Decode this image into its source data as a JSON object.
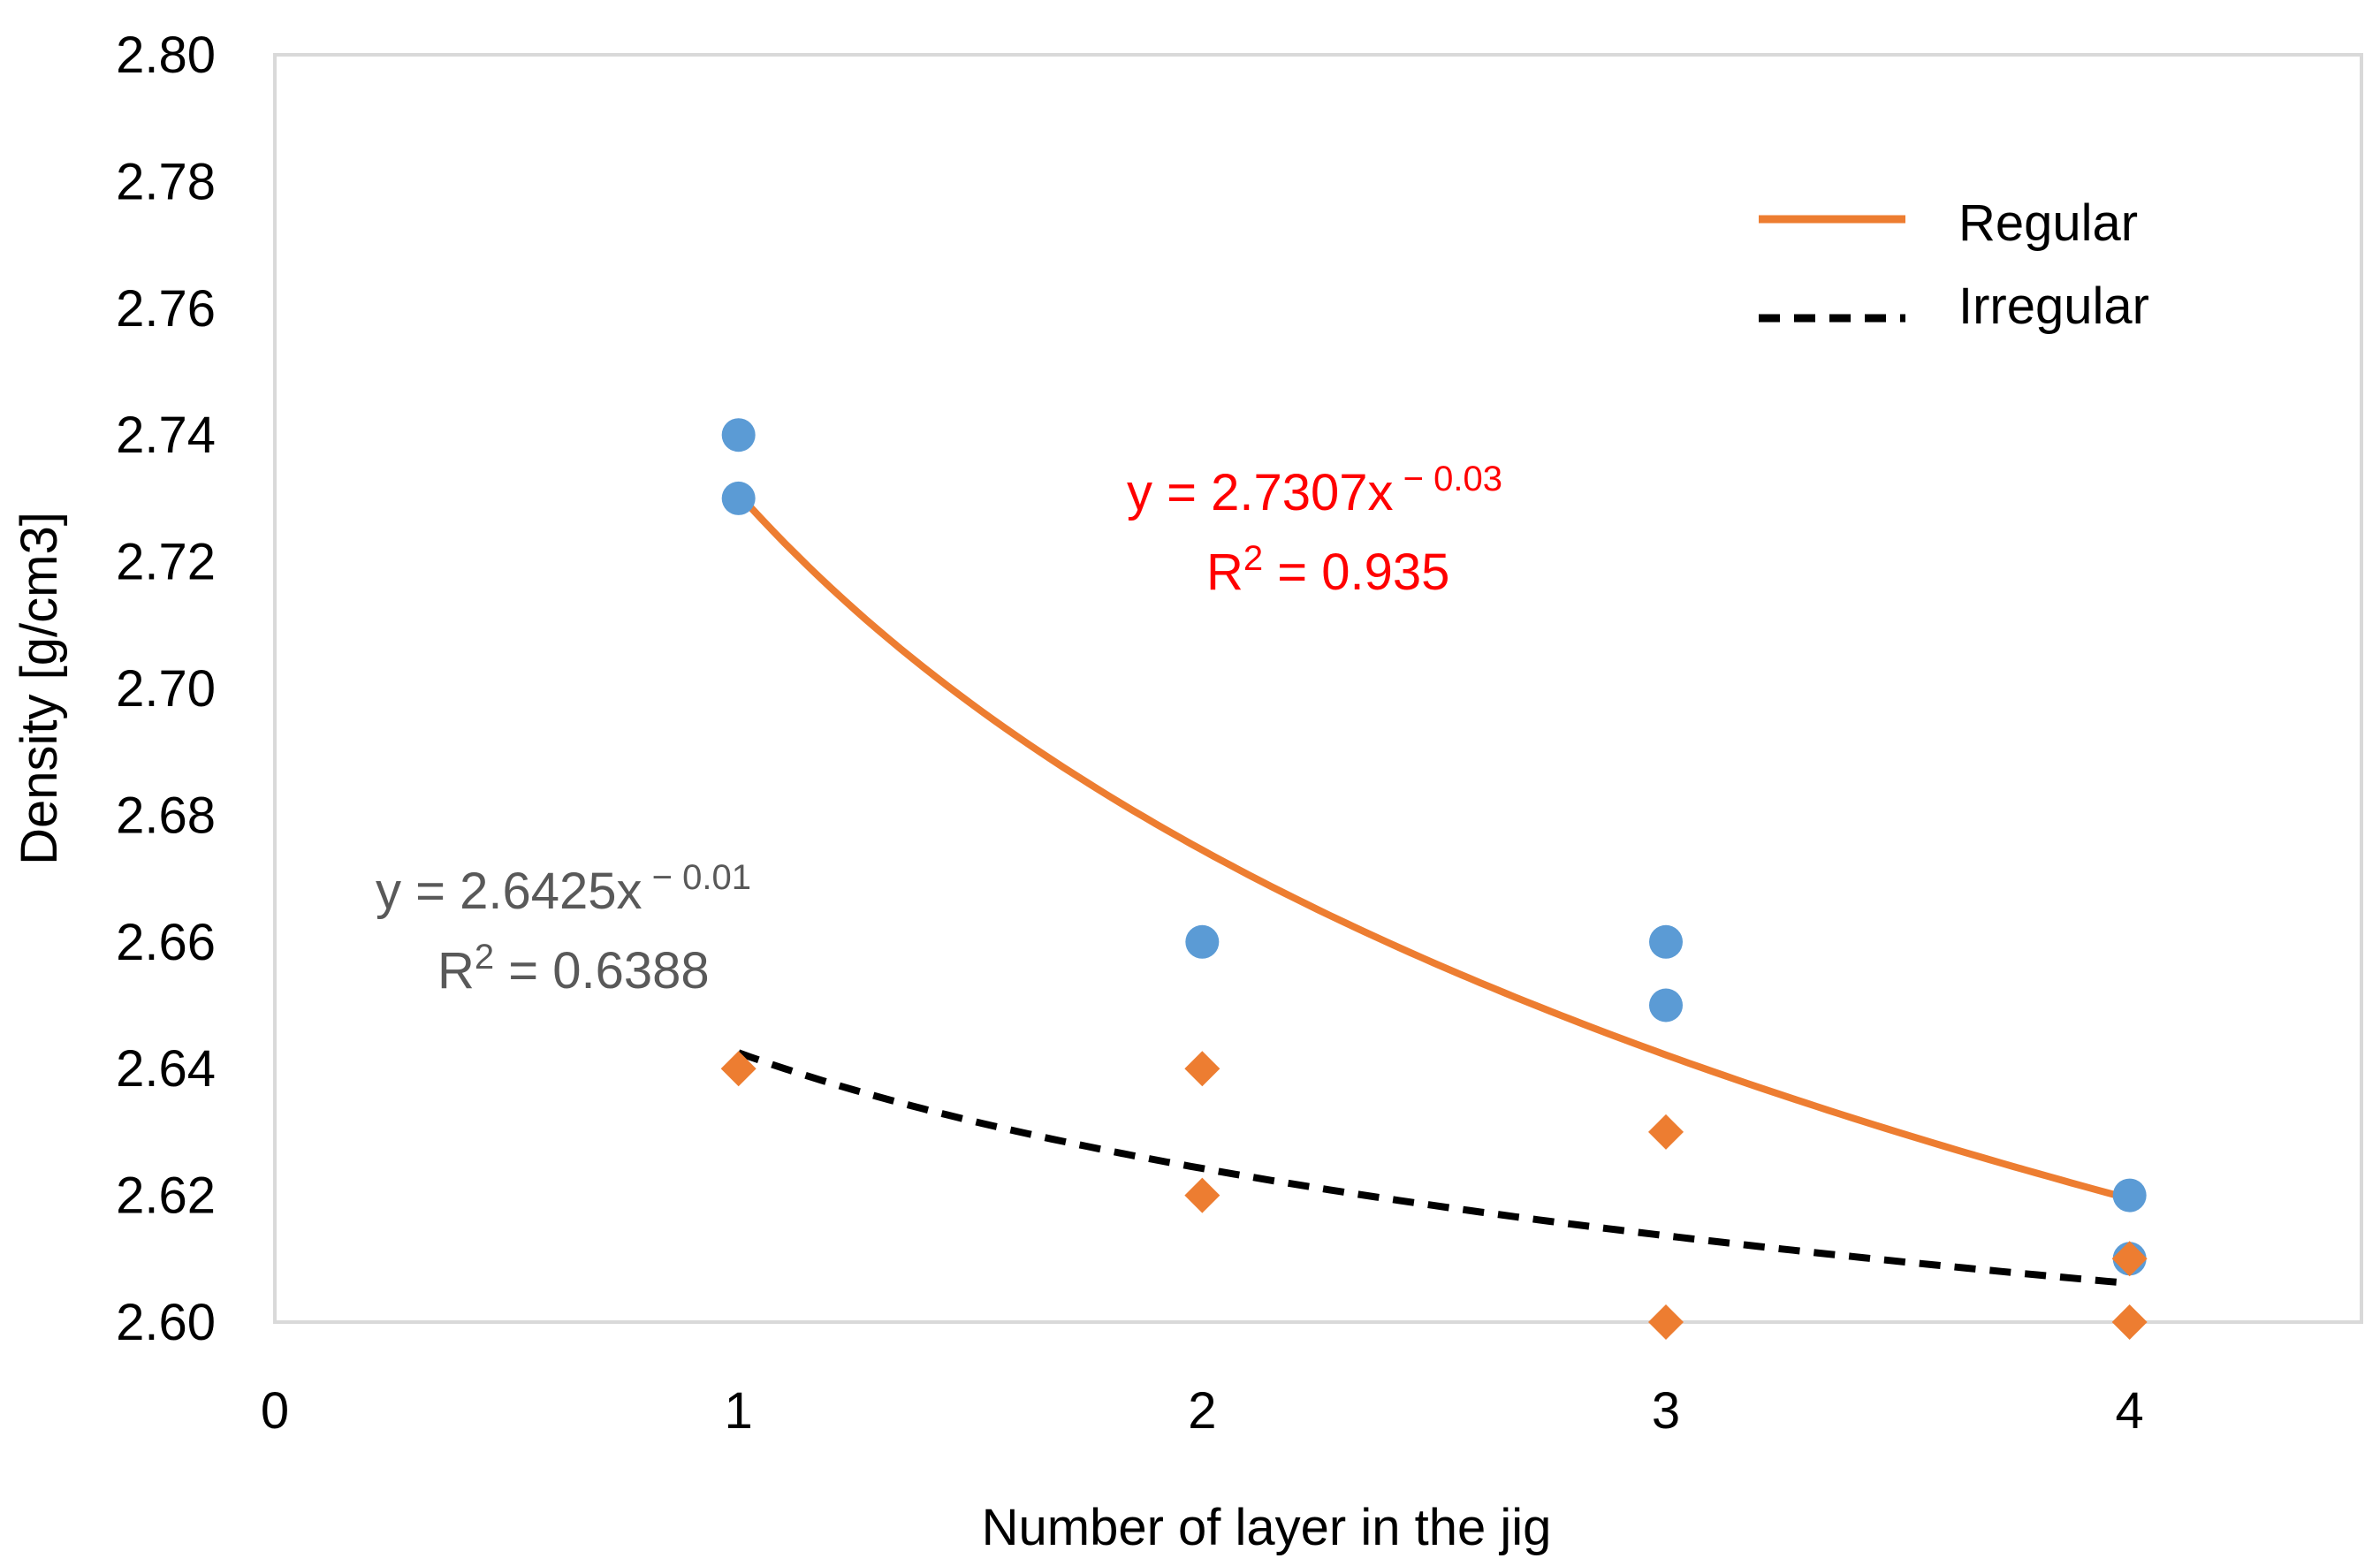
{
  "chart_data": {
    "type": "scatter",
    "title": "",
    "xlabel": "Number of layer in the jig",
    "ylabel": "Density [g/cm3]",
    "xlim": [
      0,
      4.5
    ],
    "ylim": [
      2.6,
      2.8
    ],
    "x_ticks": [
      0,
      1,
      2,
      3,
      4
    ],
    "x_tick_labels": [
      "0",
      "1",
      "2",
      "3",
      "4"
    ],
    "y_ticks": [
      2.6,
      2.62,
      2.64,
      2.66,
      2.68,
      2.7,
      2.72,
      2.74,
      2.76,
      2.78,
      2.8
    ],
    "y_tick_labels": [
      "2.60",
      "2.62",
      "2.64",
      "2.66",
      "2.68",
      "2.70",
      "2.72",
      "2.74",
      "2.76",
      "2.78",
      "2.80"
    ],
    "grid": false,
    "legend_position": "top-right",
    "series": [
      {
        "name": "Regular",
        "marker": "circle",
        "color": "#5B9BD5",
        "points": [
          {
            "x": 1,
            "y": 2.74
          },
          {
            "x": 1,
            "y": 2.73
          },
          {
            "x": 2,
            "y": 2.66
          },
          {
            "x": 3,
            "y": 2.66
          },
          {
            "x": 3,
            "y": 2.65
          },
          {
            "x": 4,
            "y": 2.62
          },
          {
            "x": 4,
            "y": 2.61
          }
        ],
        "trendline": {
          "type": "power",
          "a": 2.7307,
          "b": -0.03,
          "x_range": [
            1,
            4
          ],
          "color": "#ED7D31",
          "dash": "solid"
        }
      },
      {
        "name": "Irregular",
        "marker": "diamond",
        "color": "#ED7D31",
        "points": [
          {
            "x": 1,
            "y": 2.64
          },
          {
            "x": 2,
            "y": 2.64
          },
          {
            "x": 2,
            "y": 2.62
          },
          {
            "x": 3,
            "y": 2.63
          },
          {
            "x": 3,
            "y": 2.6
          },
          {
            "x": 4,
            "y": 2.61
          },
          {
            "x": 4,
            "y": 2.6
          }
        ],
        "trendline": {
          "type": "power",
          "a": 2.6425,
          "b": -0.01,
          "x_range": [
            1,
            4
          ],
          "color": "#000000",
          "dash": "dashed"
        }
      }
    ],
    "legend": [
      {
        "label": "Regular",
        "line_color": "#ED7D31",
        "dash": "solid"
      },
      {
        "label": "Irregular",
        "line_color": "#000000",
        "dash": "dashed"
      }
    ],
    "annotations": [
      {
        "id": "regular-eq",
        "base": "y = 2.7307x",
        "exponent": " − 0.03",
        "r2_prefix": "R",
        "r2_sup": "2",
        "r2_value": " = 0.935",
        "color": "#FF0000"
      },
      {
        "id": "irregular-eq",
        "base": "y = 2.6425x",
        "exponent": " − 0.01",
        "r2_prefix": "R",
        "r2_sup": "2",
        "r2_value": " = 0.6388",
        "color": "#595959"
      }
    ]
  }
}
